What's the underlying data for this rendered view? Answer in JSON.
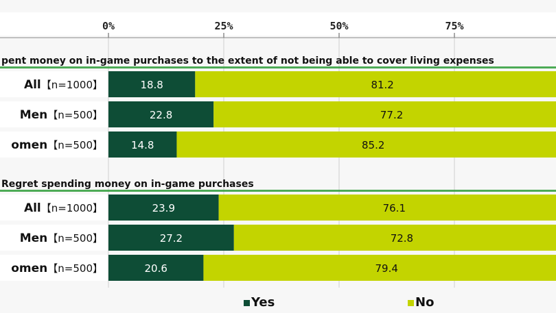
{
  "chart_data": {
    "type": "bar",
    "orientation": "horizontal",
    "stacked": true,
    "xlim": [
      0,
      100
    ],
    "ticks": [
      "0%",
      "25%",
      "50%",
      "75%"
    ],
    "tick_values": [
      0,
      25,
      50,
      75
    ],
    "legend": {
      "placement": "bottom"
    },
    "series": [
      {
        "name": "Yes",
        "color": "#0e4d36"
      },
      {
        "name": "No",
        "color": "#c3d400"
      }
    ],
    "sections": [
      {
        "title": "pent money on in-game purchases to the extent of not being able to cover living expenses",
        "rows": [
          {
            "label": "All",
            "n": "【n=1000】",
            "yes": 18.8,
            "no": 81.2
          },
          {
            "label": "Men",
            "n": "【n=500】",
            "yes": 22.8,
            "no": 77.2
          },
          {
            "label": "omen",
            "n": "【n=500】",
            "yes": 14.8,
            "no": 85.2
          }
        ]
      },
      {
        "title": "Regret spending money on in-game purchases",
        "rows": [
          {
            "label": "All",
            "n": "【n=1000】",
            "yes": 23.9,
            "no": 76.1
          },
          {
            "label": "Men",
            "n": "【n=500】",
            "yes": 27.2,
            "no": 72.8
          },
          {
            "label": "omen",
            "n": "【n=500】",
            "yes": 20.6,
            "no": 79.4
          }
        ]
      }
    ]
  },
  "colors": {
    "yes": "#0e4d36",
    "no": "#c3d400",
    "section_bar": "#2f9e3a"
  }
}
